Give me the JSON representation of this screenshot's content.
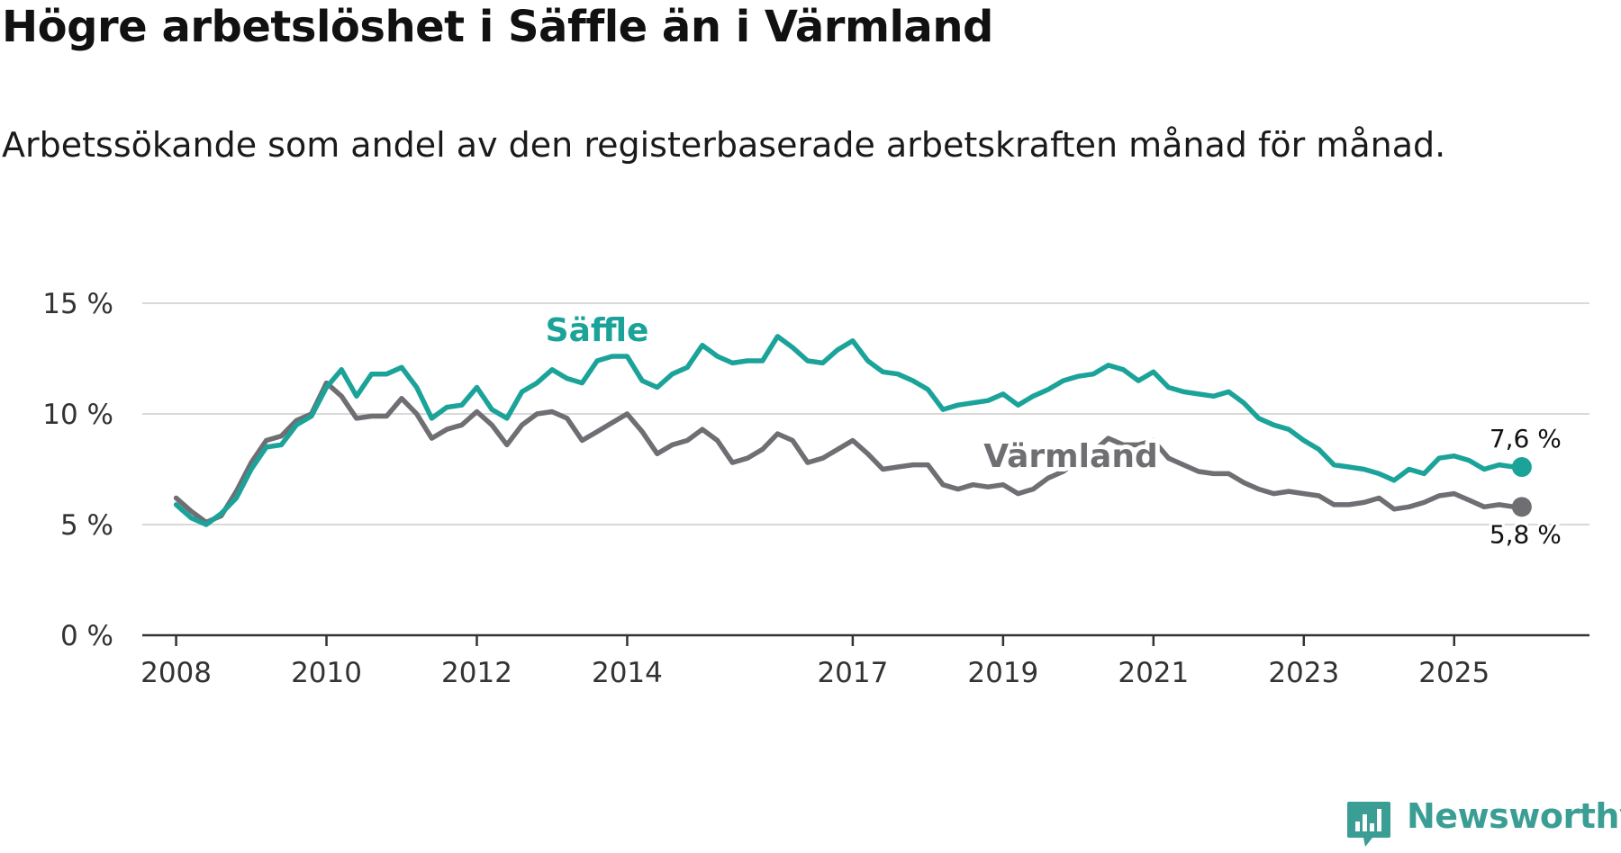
{
  "header": {
    "title": "Högre arbetslöshet i Säffle än i Värmland",
    "subtitle": "Arbetssökande som andel av den registerbaserade arbetskraften månad för månad."
  },
  "brand": {
    "name": "Newsworthy",
    "icon": "newsworthy-logo-icon",
    "color": "#3a9e94"
  },
  "chart_data": {
    "type": "line",
    "title": "Högre arbetslöshet i Säffle än i Värmland",
    "subtitle": "Arbetssökande som andel av den registerbaserade arbetskraften månad för månad.",
    "xlabel": "",
    "ylabel": "",
    "ylim": [
      0,
      15
    ],
    "xlim": [
      2007.55,
      2026.8
    ],
    "y_ticks": [
      0,
      5,
      10,
      15
    ],
    "y_tick_labels": [
      "0 %",
      "5 %",
      "10 %",
      "15 %"
    ],
    "x_ticks": [
      2008,
      2010,
      2012,
      2014,
      2017,
      2019,
      2021,
      2023,
      2025
    ],
    "x_tick_labels": [
      "2008",
      "2010",
      "2012",
      "2014",
      "2017",
      "2019",
      "2021",
      "2023",
      "2025"
    ],
    "grid": "horizontal",
    "legend": "inline labels",
    "series": [
      {
        "name": "Säffle",
        "color": "#1ba39a",
        "end_label": "7,6 %",
        "points": [
          [
            2008.0,
            5.9
          ],
          [
            2008.2,
            5.3
          ],
          [
            2008.4,
            5.0
          ],
          [
            2008.6,
            5.5
          ],
          [
            2008.8,
            6.2
          ],
          [
            2009.0,
            7.5
          ],
          [
            2009.2,
            8.5
          ],
          [
            2009.4,
            8.6
          ],
          [
            2009.6,
            9.5
          ],
          [
            2009.8,
            9.9
          ],
          [
            2010.0,
            11.2
          ],
          [
            2010.2,
            12.0
          ],
          [
            2010.4,
            10.8
          ],
          [
            2010.6,
            11.8
          ],
          [
            2010.8,
            11.8
          ],
          [
            2011.0,
            12.1
          ],
          [
            2011.2,
            11.2
          ],
          [
            2011.4,
            9.8
          ],
          [
            2011.6,
            10.3
          ],
          [
            2011.8,
            10.4
          ],
          [
            2012.0,
            11.2
          ],
          [
            2012.2,
            10.2
          ],
          [
            2012.4,
            9.8
          ],
          [
            2012.6,
            11.0
          ],
          [
            2012.8,
            11.4
          ],
          [
            2013.0,
            12.0
          ],
          [
            2013.2,
            11.6
          ],
          [
            2013.4,
            11.4
          ],
          [
            2013.6,
            12.4
          ],
          [
            2013.8,
            12.6
          ],
          [
            2014.0,
            12.6
          ],
          [
            2014.2,
            11.5
          ],
          [
            2014.4,
            11.2
          ],
          [
            2014.6,
            11.8
          ],
          [
            2014.8,
            12.1
          ],
          [
            2015.0,
            13.1
          ],
          [
            2015.2,
            12.6
          ],
          [
            2015.4,
            12.3
          ],
          [
            2015.6,
            12.4
          ],
          [
            2015.8,
            12.4
          ],
          [
            2016.0,
            13.5
          ],
          [
            2016.2,
            13.0
          ],
          [
            2016.4,
            12.4
          ],
          [
            2016.6,
            12.3
          ],
          [
            2016.8,
            12.9
          ],
          [
            2017.0,
            13.3
          ],
          [
            2017.2,
            12.4
          ],
          [
            2017.4,
            11.9
          ],
          [
            2017.6,
            11.8
          ],
          [
            2017.8,
            11.5
          ],
          [
            2018.0,
            11.1
          ],
          [
            2018.2,
            10.2
          ],
          [
            2018.4,
            10.4
          ],
          [
            2018.6,
            10.5
          ],
          [
            2018.8,
            10.6
          ],
          [
            2019.0,
            10.9
          ],
          [
            2019.2,
            10.4
          ],
          [
            2019.4,
            10.8
          ],
          [
            2019.6,
            11.1
          ],
          [
            2019.8,
            11.5
          ],
          [
            2020.0,
            11.7
          ],
          [
            2020.2,
            11.8
          ],
          [
            2020.4,
            12.2
          ],
          [
            2020.6,
            12.0
          ],
          [
            2020.8,
            11.5
          ],
          [
            2021.0,
            11.9
          ],
          [
            2021.2,
            11.2
          ],
          [
            2021.4,
            11.0
          ],
          [
            2021.6,
            10.9
          ],
          [
            2021.8,
            10.8
          ],
          [
            2022.0,
            11.0
          ],
          [
            2022.2,
            10.5
          ],
          [
            2022.4,
            9.8
          ],
          [
            2022.6,
            9.5
          ],
          [
            2022.8,
            9.3
          ],
          [
            2023.0,
            8.8
          ],
          [
            2023.2,
            8.4
          ],
          [
            2023.4,
            7.7
          ],
          [
            2023.6,
            7.6
          ],
          [
            2023.8,
            7.5
          ],
          [
            2024.0,
            7.3
          ],
          [
            2024.2,
            7.0
          ],
          [
            2024.4,
            7.5
          ],
          [
            2024.6,
            7.3
          ],
          [
            2024.8,
            8.0
          ],
          [
            2025.0,
            8.1
          ],
          [
            2025.2,
            7.9
          ],
          [
            2025.4,
            7.5
          ],
          [
            2025.6,
            7.7
          ],
          [
            2025.8,
            7.6
          ],
          [
            2025.9,
            7.6
          ]
        ]
      },
      {
        "name": "Värmland",
        "color": "#6e6e73",
        "end_label": "5,8 %",
        "points": [
          [
            2008.0,
            6.2
          ],
          [
            2008.2,
            5.6
          ],
          [
            2008.4,
            5.1
          ],
          [
            2008.6,
            5.4
          ],
          [
            2008.8,
            6.5
          ],
          [
            2009.0,
            7.8
          ],
          [
            2009.2,
            8.8
          ],
          [
            2009.4,
            9.0
          ],
          [
            2009.6,
            9.7
          ],
          [
            2009.8,
            10.0
          ],
          [
            2010.0,
            11.4
          ],
          [
            2010.2,
            10.8
          ],
          [
            2010.4,
            9.8
          ],
          [
            2010.6,
            9.9
          ],
          [
            2010.8,
            9.9
          ],
          [
            2011.0,
            10.7
          ],
          [
            2011.2,
            10.0
          ],
          [
            2011.4,
            8.9
          ],
          [
            2011.6,
            9.3
          ],
          [
            2011.8,
            9.5
          ],
          [
            2012.0,
            10.1
          ],
          [
            2012.2,
            9.5
          ],
          [
            2012.4,
            8.6
          ],
          [
            2012.6,
            9.5
          ],
          [
            2012.8,
            10.0
          ],
          [
            2013.0,
            10.1
          ],
          [
            2013.2,
            9.8
          ],
          [
            2013.4,
            8.8
          ],
          [
            2013.6,
            9.2
          ],
          [
            2013.8,
            9.6
          ],
          [
            2014.0,
            10.0
          ],
          [
            2014.2,
            9.2
          ],
          [
            2014.4,
            8.2
          ],
          [
            2014.6,
            8.6
          ],
          [
            2014.8,
            8.8
          ],
          [
            2015.0,
            9.3
          ],
          [
            2015.2,
            8.8
          ],
          [
            2015.4,
            7.8
          ],
          [
            2015.6,
            8.0
          ],
          [
            2015.8,
            8.4
          ],
          [
            2016.0,
            9.1
          ],
          [
            2016.2,
            8.8
          ],
          [
            2016.4,
            7.8
          ],
          [
            2016.6,
            8.0
          ],
          [
            2016.8,
            8.4
          ],
          [
            2017.0,
            8.8
          ],
          [
            2017.2,
            8.2
          ],
          [
            2017.4,
            7.5
          ],
          [
            2017.6,
            7.6
          ],
          [
            2017.8,
            7.7
          ],
          [
            2018.0,
            7.7
          ],
          [
            2018.2,
            6.8
          ],
          [
            2018.4,
            6.6
          ],
          [
            2018.6,
            6.8
          ],
          [
            2018.8,
            6.7
          ],
          [
            2019.0,
            6.8
          ],
          [
            2019.2,
            6.4
          ],
          [
            2019.4,
            6.6
          ],
          [
            2019.6,
            7.1
          ],
          [
            2019.8,
            7.4
          ],
          [
            2020.0,
            7.9
          ],
          [
            2020.2,
            8.3
          ],
          [
            2020.4,
            8.9
          ],
          [
            2020.6,
            8.6
          ],
          [
            2020.8,
            8.6
          ],
          [
            2021.0,
            8.8
          ],
          [
            2021.2,
            8.0
          ],
          [
            2021.4,
            7.7
          ],
          [
            2021.6,
            7.4
          ],
          [
            2021.8,
            7.3
          ],
          [
            2022.0,
            7.3
          ],
          [
            2022.2,
            6.9
          ],
          [
            2022.4,
            6.6
          ],
          [
            2022.6,
            6.4
          ],
          [
            2022.8,
            6.5
          ],
          [
            2023.0,
            6.4
          ],
          [
            2023.2,
            6.3
          ],
          [
            2023.4,
            5.9
          ],
          [
            2023.6,
            5.9
          ],
          [
            2023.8,
            6.0
          ],
          [
            2024.0,
            6.2
          ],
          [
            2024.2,
            5.7
          ],
          [
            2024.4,
            5.8
          ],
          [
            2024.6,
            6.0
          ],
          [
            2024.8,
            6.3
          ],
          [
            2025.0,
            6.4
          ],
          [
            2025.2,
            6.1
          ],
          [
            2025.4,
            5.8
          ],
          [
            2025.6,
            5.9
          ],
          [
            2025.8,
            5.8
          ],
          [
            2025.9,
            5.8
          ]
        ]
      }
    ],
    "annotations": [
      {
        "text": "Säffle",
        "series": "Säffle",
        "x": 2013.6,
        "y": 13.3
      },
      {
        "text": "Värmland",
        "series": "Värmland",
        "x": 2019.9,
        "y": 7.6
      }
    ]
  }
}
